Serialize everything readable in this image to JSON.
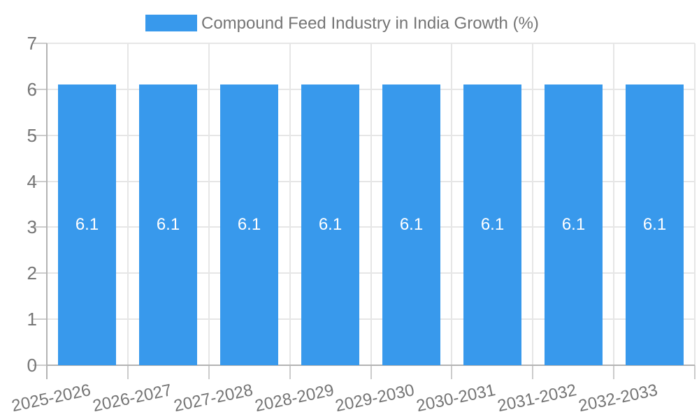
{
  "chart_data": {
    "type": "bar",
    "title": "Compound Feed Industry in India Growth (%)",
    "categories": [
      "2025-2026",
      "2026-2027",
      "2027-2028",
      "2028-2029",
      "2029-2030",
      "2030-2031",
      "2031-2032",
      "2032-2033"
    ],
    "values": [
      6.1,
      6.1,
      6.1,
      6.1,
      6.1,
      6.1,
      6.1,
      6.1
    ],
    "bar_value_labels": [
      "6.1",
      "6.1",
      "6.1",
      "6.1",
      "6.1",
      "6.1",
      "6.1",
      "6.1"
    ],
    "xlabel": "",
    "ylabel": "",
    "ylim": [
      0,
      7
    ],
    "yticks": [
      0,
      1,
      2,
      3,
      4,
      5,
      6,
      7
    ],
    "grid": true,
    "legend_position": "top",
    "data_labels_inside_bars": true
  },
  "legend": {
    "label": "Compound Feed Industry in India Growth (%)"
  },
  "colors": {
    "bar": "#3899EC",
    "bar_label": "#FFFFFF",
    "axis_text": "#757575",
    "gridline": "#E6E6E6",
    "axis_line": "#B3B3B3",
    "tick": "#CCCCCC",
    "background": "#FFFFFF"
  }
}
